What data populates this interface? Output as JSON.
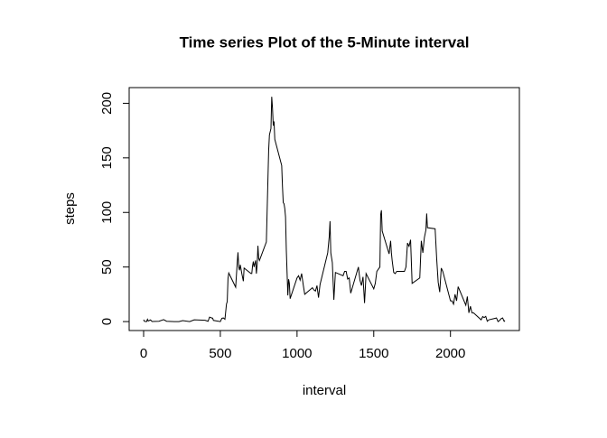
{
  "chart_data": {
    "type": "line",
    "title": "Time series Plot of the 5-Minute interval",
    "x_label": "interval",
    "y_label": "steps",
    "x": [
      0,
      5,
      10,
      20,
      25,
      30,
      45,
      55,
      100,
      130,
      150,
      200,
      230,
      255,
      300,
      330,
      400,
      420,
      430,
      440,
      450,
      455,
      500,
      510,
      520,
      530,
      540,
      545,
      550,
      555,
      600,
      610,
      615,
      620,
      625,
      630,
      640,
      650,
      655,
      700,
      705,
      710,
      715,
      720,
      730,
      735,
      740,
      745,
      750,
      755,
      800,
      810,
      815,
      820,
      830,
      835,
      840,
      845,
      850,
      855,
      900,
      905,
      910,
      915,
      920,
      925,
      930,
      935,
      940,
      945,
      950,
      955,
      1000,
      1010,
      1020,
      1030,
      1040,
      1050,
      1100,
      1110,
      1120,
      1130,
      1140,
      1150,
      1200,
      1210,
      1215,
      1220,
      1230,
      1240,
      1250,
      1300,
      1310,
      1320,
      1330,
      1340,
      1350,
      1400,
      1410,
      1420,
      1430,
      1440,
      1450,
      1500,
      1510,
      1520,
      1530,
      1540,
      1545,
      1550,
      1555,
      1600,
      1610,
      1615,
      1620,
      1630,
      1640,
      1650,
      1700,
      1710,
      1720,
      1730,
      1740,
      1750,
      1800,
      1810,
      1820,
      1830,
      1840,
      1845,
      1850,
      1900,
      1910,
      1920,
      1930,
      1940,
      1950,
      2000,
      2010,
      2020,
      2030,
      2040,
      2050,
      2100,
      2110,
      2120,
      2130,
      2140,
      2150,
      2200,
      2210,
      2220,
      2230,
      2240,
      2250,
      2300,
      2310,
      2320,
      2330,
      2340,
      2350,
      2355
    ],
    "series": [
      {
        "name": "steps",
        "color": "#000000",
        "values": [
          1.7,
          0.3,
          0.1,
          0.1,
          2.1,
          0.5,
          1.5,
          0.1,
          0.3,
          1.8,
          0.3,
          0,
          0,
          0.9,
          0,
          1.6,
          1.2,
          0.3,
          4.1,
          3.5,
          3.1,
          1.1,
          0,
          3.0,
          3.3,
          2.1,
          16,
          18.3,
          39.5,
          44.5,
          31.5,
          53.8,
          63.5,
          50,
          47,
          52,
          44,
          37,
          49,
          44,
          44,
          51,
          55,
          50,
          56,
          44,
          52,
          69.5,
          58,
          56,
          73,
          129,
          157,
          171,
          177,
          206,
          195.9,
          179.6,
          183.4,
          167,
          143,
          124,
          109,
          108,
          103.7,
          95.9,
          66,
          45,
          24,
          38.8,
          35,
          21,
          40,
          42,
          38,
          44,
          34,
          25,
          31,
          29,
          28,
          33,
          22,
          34,
          63,
          78,
          92,
          63,
          54,
          20,
          45,
          42,
          46,
          46,
          39,
          40,
          26,
          50,
          38,
          33,
          41,
          17,
          44,
          30,
          35,
          46,
          48,
          50,
          98,
          102,
          83,
          62,
          74,
          63,
          56,
          45,
          44,
          46,
          46,
          50,
          72,
          69,
          75,
          35,
          40,
          74,
          63,
          77,
          84,
          99,
          86,
          85,
          58,
          36,
          27,
          49,
          46,
          19,
          19,
          16,
          25,
          19,
          32,
          15,
          23,
          8,
          14,
          8,
          8,
          1.6,
          4.6,
          3.7,
          4.8,
          0.3,
          1.6,
          3.3,
          0,
          1,
          2.6,
          3.3,
          0.2,
          1.1
        ]
      }
    ],
    "xlim": [
      -94.2,
      2449.2
    ],
    "ylim": [
      -8.2,
      214.4
    ],
    "xticks": [
      0,
      500,
      1000,
      1500,
      2000
    ],
    "yticks": [
      0,
      50,
      100,
      150,
      200
    ]
  }
}
